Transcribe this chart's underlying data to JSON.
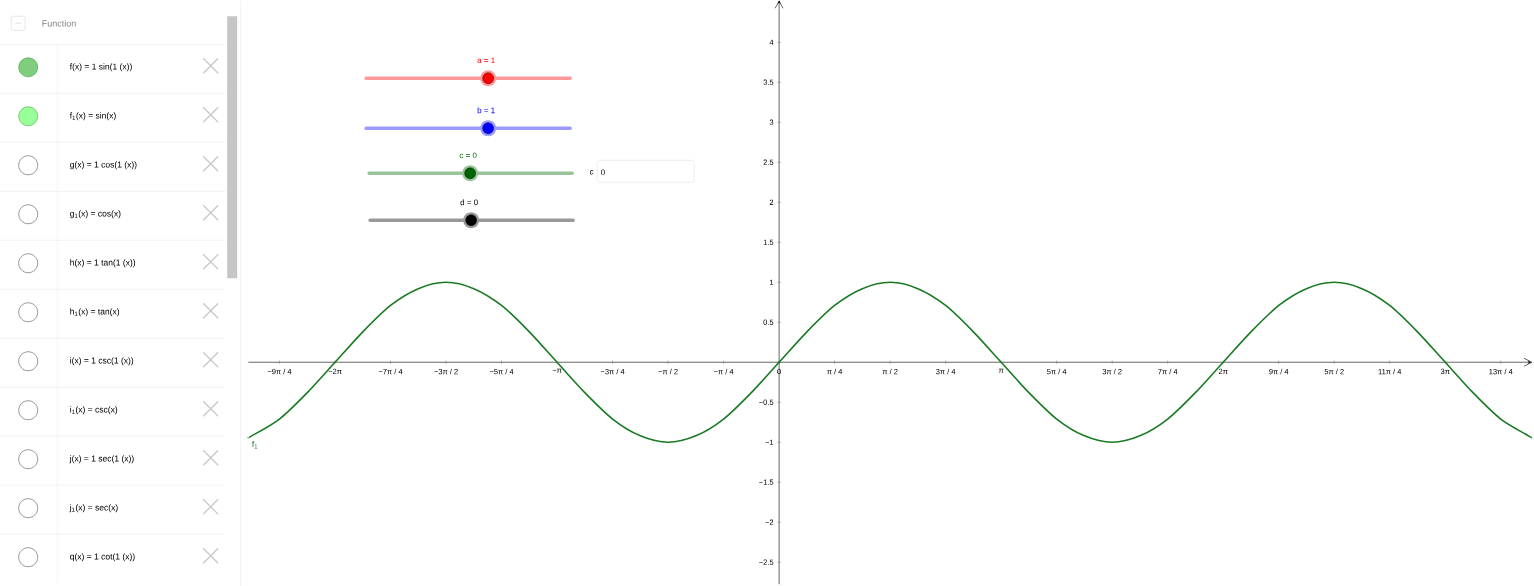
{
  "chart_data": [
    {
      "type": "other",
      "title": "Function",
      "annotations": [
        "f(x) = 1 sin(1 (x))",
        "f$_{1}$(x) = sin(x)",
        "g(x) = 1 cos(1 (x))",
        "g$_{1}$(x) = cos(x)",
        "h(x) = 1 tan(1 (x))",
        "h$_{1}$(x) = tan(x)",
        "i(x) = 1 csc(1 (x))",
        "i$_{1}$(x) = csc(x)",
        "j(x) = 1 sec(1 (x))",
        "j$_{1}$(x) = sec(x)",
        "q(x) = 1 cot(1 (x))"
      ]
    },
    {
      "type": "line",
      "annotations": [
        "a = 1",
        "b = 1",
        "c = 0",
        "d = 0",
        "c",
        "0"
      ],
      "xlim": [
        -7.51,
        10.64
      ],
      "ylim": [
        -2.775,
        4.525
      ],
      "xticks": [
        {
          "value": -7.069,
          "label": "−9π / 4"
        },
        {
          "value": -6.283,
          "label": "−2π"
        },
        {
          "value": -5.498,
          "label": "−7π / 4"
        },
        {
          "value": -4.712,
          "label": "−3π / 2"
        },
        {
          "value": -3.927,
          "label": "−5π / 4"
        },
        {
          "value": -3.142,
          "label": "−π"
        },
        {
          "value": -2.356,
          "label": "−3π / 4"
        },
        {
          "value": -1.571,
          "label": "−π / 2"
        },
        {
          "value": -0.785,
          "label": "−π / 4"
        },
        0,
        {
          "value": 0.785,
          "label": "π / 4"
        },
        {
          "value": 1.571,
          "label": "π / 2"
        },
        {
          "value": 2.356,
          "label": "3π / 4"
        },
        {
          "value": 3.142,
          "label": "π"
        },
        {
          "value": 3.927,
          "label": "5π / 4"
        },
        {
          "value": 4.712,
          "label": "3π / 2"
        },
        {
          "value": 5.498,
          "label": "7π / 4"
        },
        {
          "value": 6.283,
          "label": "2π"
        },
        {
          "value": 7.069,
          "label": "9π / 4"
        },
        {
          "value": 7.854,
          "label": "5π / 2"
        },
        {
          "value": 8.639,
          "label": "11π / 4"
        },
        {
          "value": 9.425,
          "label": "3π"
        },
        {
          "value": 10.21,
          "label": "13π / 4"
        }
      ],
      "yticks": [
        {
          "value": -2.5,
          "label": "−2.5"
        },
        {
          "value": -2,
          "label": "−2"
        },
        {
          "value": -1.5,
          "label": "−1.5"
        },
        {
          "value": -1,
          "label": "−1"
        },
        {
          "value": -0.5,
          "label": "−0.5"
        },
        {
          "value": 0,
          "label": null
        },
        0.5,
        1,
        1.5,
        2,
        2.5,
        3,
        3.5,
        4
      ],
      "series": [
        {
          "name": "f$_{1}$",
          "color": "#1a7a24",
          "x": [
            -7.51,
            -7.461,
            -7.069,
            -6.676,
            -6.283,
            -5.89,
            -5.498,
            -5.105,
            -4.712,
            -4.32,
            -3.927,
            -3.534,
            -3.142,
            -2.749,
            -2.356,
            -1.963,
            -1.571,
            -1.178,
            -0.785,
            -0.393,
            0,
            0.393,
            0.785,
            1.178,
            1.571,
            1.963,
            2.356,
            2.749,
            3.142,
            3.534,
            3.927,
            4.32,
            4.712,
            5.105,
            5.498,
            5.89,
            6.283,
            6.676,
            7.069,
            7.461,
            7.854,
            8.247,
            8.639,
            9.032,
            9.425,
            9.817,
            10.21,
            10.603,
            10.64
          ],
          "values": [
            -0.94,
            -0.92,
            -0.71,
            -0.38,
            0,
            0.38,
            0.71,
            0.92,
            1,
            0.92,
            0.71,
            0.38,
            0,
            -0.38,
            -0.71,
            -0.92,
            -1,
            -0.92,
            -0.71,
            -0.38,
            0,
            0.38,
            0.71,
            0.92,
            1,
            0.92,
            0.71,
            0.38,
            0,
            -0.38,
            -0.71,
            -0.92,
            -1,
            -0.92,
            -0.71,
            -0.38,
            0,
            0.38,
            0.71,
            0.92,
            1,
            0.92,
            0.71,
            0.38,
            0,
            -0.38,
            -0.71,
            -0.92,
            -0.94
          ]
        }
      ]
    }
  ]
}
